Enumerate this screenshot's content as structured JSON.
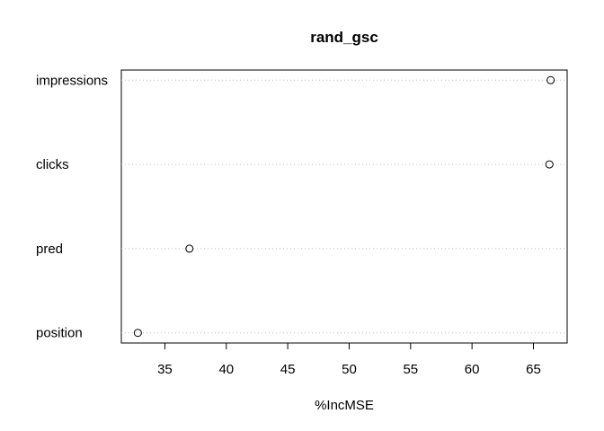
{
  "chart_data": {
    "type": "dotchart",
    "title": "rand_gsc",
    "xlabel": "%IncMSE",
    "ylabel": "",
    "categories": [
      "impressions",
      "clicks",
      "pred",
      "position"
    ],
    "values": [
      66.4,
      66.3,
      37.0,
      32.8
    ],
    "xlim": [
      32.8,
      66.4
    ],
    "xticks": [
      35,
      40,
      45,
      50,
      55,
      60,
      65
    ],
    "grid": "dotted horizontal guide lines",
    "marker": "open circle"
  }
}
